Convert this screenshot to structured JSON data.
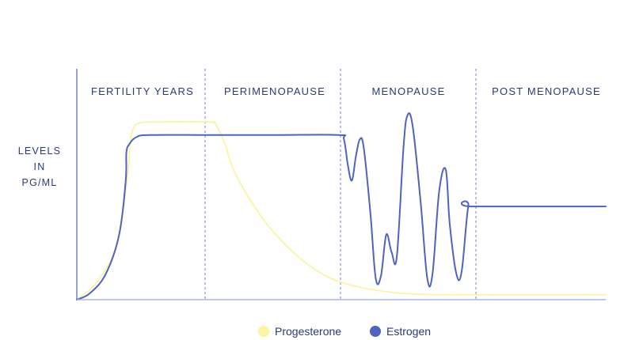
{
  "chart_data": {
    "type": "line",
    "ylabel_lines": [
      "LEVELS",
      "IN",
      "PG/ML"
    ],
    "phases": [
      "FERTILITY YEARS",
      "PERIMENOPAUSE",
      "MENOPAUSE",
      "POST MENOPAUSE"
    ],
    "xlim": [
      0,
      4
    ],
    "ylim": [
      0,
      100
    ],
    "grid": false,
    "legend_position": "bottom-center",
    "series": [
      {
        "name": "Progesterone",
        "color": "#fbf4a0",
        "points": [
          [
            0,
            0
          ],
          [
            0.15,
            8
          ],
          [
            0.3,
            25
          ],
          [
            0.38,
            55
          ],
          [
            0.4,
            70
          ],
          [
            0.42,
            78
          ],
          [
            0.47,
            81.5
          ],
          [
            0.6,
            82
          ],
          [
            1.0,
            82
          ],
          [
            1.05,
            81
          ],
          [
            1.12,
            72
          ],
          [
            1.2,
            58
          ],
          [
            1.4,
            38
          ],
          [
            1.6,
            24
          ],
          [
            1.8,
            14
          ],
          [
            2.0,
            8
          ],
          [
            2.3,
            4
          ],
          [
            2.6,
            2.5
          ],
          [
            3.0,
            2.3
          ],
          [
            4.0,
            2.3
          ]
        ]
      },
      {
        "name": "Estrogen",
        "color": "#4f63bf",
        "points": [
          [
            0,
            0
          ],
          [
            0.1,
            3
          ],
          [
            0.22,
            12
          ],
          [
            0.32,
            30
          ],
          [
            0.37,
            55
          ],
          [
            0.375,
            68
          ],
          [
            0.4,
            72
          ],
          [
            0.45,
            75
          ],
          [
            0.55,
            76
          ],
          [
            1.0,
            76
          ],
          [
            1.5,
            76
          ],
          [
            1.98,
            76
          ],
          [
            2.02,
            74
          ],
          [
            2.05,
            62
          ],
          [
            2.08,
            55
          ],
          [
            2.11,
            66
          ],
          [
            2.14,
            74
          ],
          [
            2.17,
            70
          ],
          [
            2.22,
            40
          ],
          [
            2.26,
            10
          ],
          [
            2.3,
            11
          ],
          [
            2.34,
            30
          ],
          [
            2.38,
            22
          ],
          [
            2.42,
            20
          ],
          [
            2.47,
            70
          ],
          [
            2.5,
            85
          ],
          [
            2.54,
            80
          ],
          [
            2.6,
            45
          ],
          [
            2.65,
            10
          ],
          [
            2.69,
            12
          ],
          [
            2.74,
            50
          ],
          [
            2.79,
            60
          ],
          [
            2.82,
            35
          ],
          [
            2.87,
            12
          ],
          [
            2.91,
            13
          ],
          [
            2.96,
            43
          ],
          [
            3.0,
            43
          ],
          [
            4.0,
            43
          ]
        ]
      }
    ]
  }
}
